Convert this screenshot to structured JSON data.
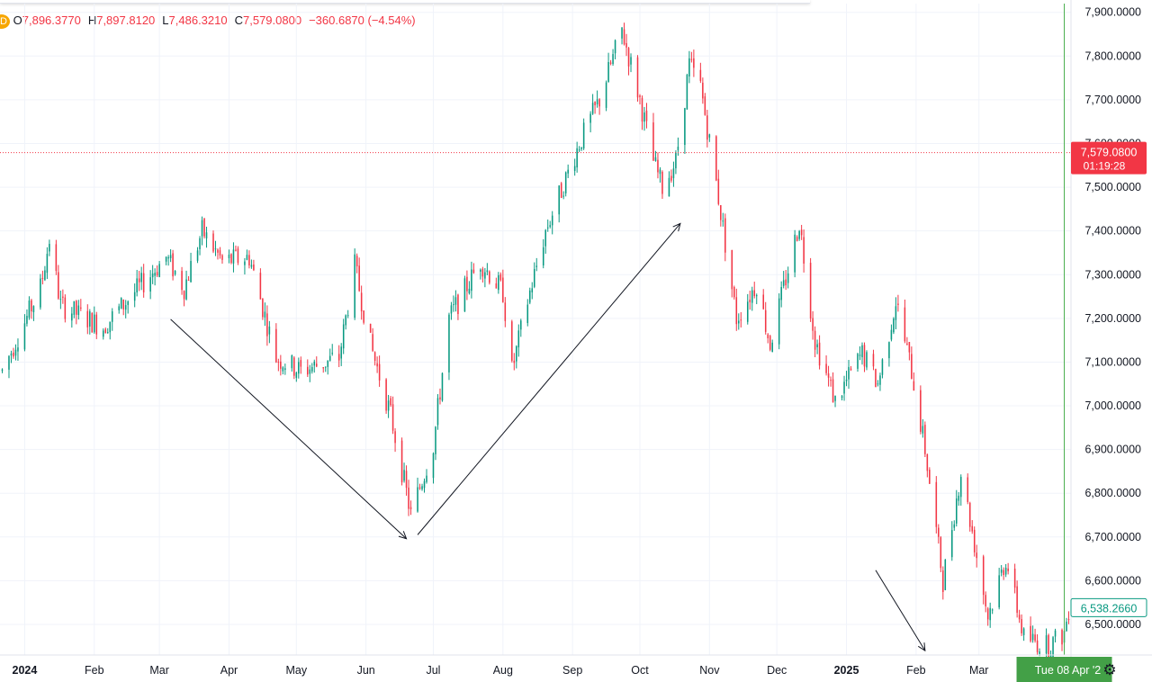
{
  "ohlc": {
    "badge": "D",
    "open_label": "O",
    "open": "7,896.3770",
    "high_label": "H",
    "high": "7,897.8120",
    "low_label": "L",
    "low": "7,486.3210",
    "close_label": "C",
    "close": "7,579.0800",
    "change": "−360.6870 (−4.54%)"
  },
  "colors": {
    "up": "#089981",
    "down": "#f23645",
    "grid": "#f0f3fa",
    "text": "#131722",
    "crosshair": "#4caf50"
  },
  "chart_data": {
    "type": "candlestick",
    "y_ticks": [
      6500,
      6600,
      6700,
      6800,
      6900,
      7000,
      7100,
      7200,
      7300,
      7400,
      7500,
      7600,
      7700,
      7800,
      7900
    ],
    "y_tick_labels": [
      "6,500.0000",
      "6,600.0000",
      "6,700.0000",
      "6,800.0000",
      "6,900.0000",
      "7,000.0000",
      "7,100.0000",
      "7,200.0000",
      "7,300.0000",
      "7,400.0000",
      "7,500.0000",
      "7,600.0000",
      "7,700.0000",
      "7,800.0000",
      "7,900.0000"
    ],
    "ylim": [
      6430,
      7920
    ],
    "x_labels": [
      {
        "date": "2024-01-01",
        "label": "2024",
        "bold": true
      },
      {
        "date": "2024-02-01",
        "label": "Feb"
      },
      {
        "date": "2024-03-01",
        "label": "Mar"
      },
      {
        "date": "2024-04-01",
        "label": "Apr"
      },
      {
        "date": "2024-05-01",
        "label": "May"
      },
      {
        "date": "2024-06-01",
        "label": "Jun"
      },
      {
        "date": "2024-07-01",
        "label": "Jul"
      },
      {
        "date": "2024-08-01",
        "label": "Aug"
      },
      {
        "date": "2024-09-01",
        "label": "Sep"
      },
      {
        "date": "2024-10-01",
        "label": "Oct"
      },
      {
        "date": "2024-11-01",
        "label": "Nov"
      },
      {
        "date": "2024-12-01",
        "label": "Dec"
      },
      {
        "date": "2025-01-01",
        "label": "2025",
        "bold": true
      },
      {
        "date": "2025-02-01",
        "label": "Feb"
      },
      {
        "date": "2025-03-01",
        "label": "Mar"
      }
    ],
    "xlim": [
      "2023-12-21",
      "2025-04-11"
    ],
    "price_line": {
      "value": 7579.08,
      "label": "7,579.0800",
      "countdown": "01:19:28",
      "color": "#f23645"
    },
    "last_value": {
      "value": 6538.266,
      "label": "6,538.2660",
      "color": "#089981"
    },
    "crosshair": {
      "date": "2025-04-08",
      "label": "Tue 08 Apr '2"
    },
    "anchors": [
      {
        "date": "2023-12-22",
        "value": 7080
      },
      {
        "date": "2024-01-08",
        "value": 7270
      },
      {
        "date": "2024-01-12",
        "value": 7380
      },
      {
        "date": "2024-01-17",
        "value": 7230
      },
      {
        "date": "2024-02-05",
        "value": 7180
      },
      {
        "date": "2024-03-04",
        "value": 7340
      },
      {
        "date": "2024-03-12",
        "value": 7270
      },
      {
        "date": "2024-03-20",
        "value": 7400
      },
      {
        "date": "2024-03-29",
        "value": 7330
      },
      {
        "date": "2024-04-10",
        "value": 7340
      },
      {
        "date": "2024-04-22",
        "value": 7110
      },
      {
        "date": "2024-05-03",
        "value": 7080
      },
      {
        "date": "2024-05-20",
        "value": 7110
      },
      {
        "date": "2024-05-27",
        "value": 7320
      },
      {
        "date": "2024-06-03",
        "value": 7140
      },
      {
        "date": "2024-06-12",
        "value": 6980
      },
      {
        "date": "2024-06-21",
        "value": 6750
      },
      {
        "date": "2024-07-01",
        "value": 6910
      },
      {
        "date": "2024-07-08",
        "value": 7200
      },
      {
        "date": "2024-07-22",
        "value": 7330
      },
      {
        "date": "2024-08-01",
        "value": 7260
      },
      {
        "date": "2024-08-05",
        "value": 7080
      },
      {
        "date": "2024-08-12",
        "value": 7240
      },
      {
        "date": "2024-08-20",
        "value": 7400
      },
      {
        "date": "2024-09-04",
        "value": 7600
      },
      {
        "date": "2024-09-13",
        "value": 7700
      },
      {
        "date": "2024-09-23",
        "value": 7860
      },
      {
        "date": "2024-10-01",
        "value": 7700
      },
      {
        "date": "2024-10-07",
        "value": 7560
      },
      {
        "date": "2024-10-11",
        "value": 7500
      },
      {
        "date": "2024-10-17",
        "value": 7560
      },
      {
        "date": "2024-10-23",
        "value": 7780
      },
      {
        "date": "2024-10-28",
        "value": 7730
      },
      {
        "date": "2024-11-04",
        "value": 7510
      },
      {
        "date": "2024-11-13",
        "value": 7200
      },
      {
        "date": "2024-11-22",
        "value": 7280
      },
      {
        "date": "2024-11-28",
        "value": 7140
      },
      {
        "date": "2024-12-11",
        "value": 7420
      },
      {
        "date": "2024-12-18",
        "value": 7150
      },
      {
        "date": "2024-12-27",
        "value": 7010
      },
      {
        "date": "2025-01-08",
        "value": 7120
      },
      {
        "date": "2025-01-15",
        "value": 7050
      },
      {
        "date": "2025-01-23",
        "value": 7240
      },
      {
        "date": "2025-01-30",
        "value": 7080
      },
      {
        "date": "2025-02-05",
        "value": 6900
      },
      {
        "date": "2025-02-13",
        "value": 6600
      },
      {
        "date": "2025-02-21",
        "value": 6850
      },
      {
        "date": "2025-03-05",
        "value": 6520
      },
      {
        "date": "2025-03-13",
        "value": 6650
      },
      {
        "date": "2025-03-21",
        "value": 6470
      },
      {
        "date": "2025-04-01",
        "value": 6450
      },
      {
        "date": "2025-04-08",
        "value": 6480
      },
      {
        "date": "2025-04-10",
        "value": 6538
      }
    ],
    "arrows": [
      {
        "from": {
          "date": "2024-03-06",
          "value": 7198
        },
        "to": {
          "date": "2024-06-19",
          "value": 6696
        }
      },
      {
        "from": {
          "date": "2024-06-24",
          "value": 6705
        },
        "to": {
          "date": "2024-10-19",
          "value": 7417
        }
      },
      {
        "from": {
          "date": "2025-01-14",
          "value": 6624
        },
        "to": {
          "date": "2025-02-05",
          "value": 6440
        }
      }
    ]
  }
}
